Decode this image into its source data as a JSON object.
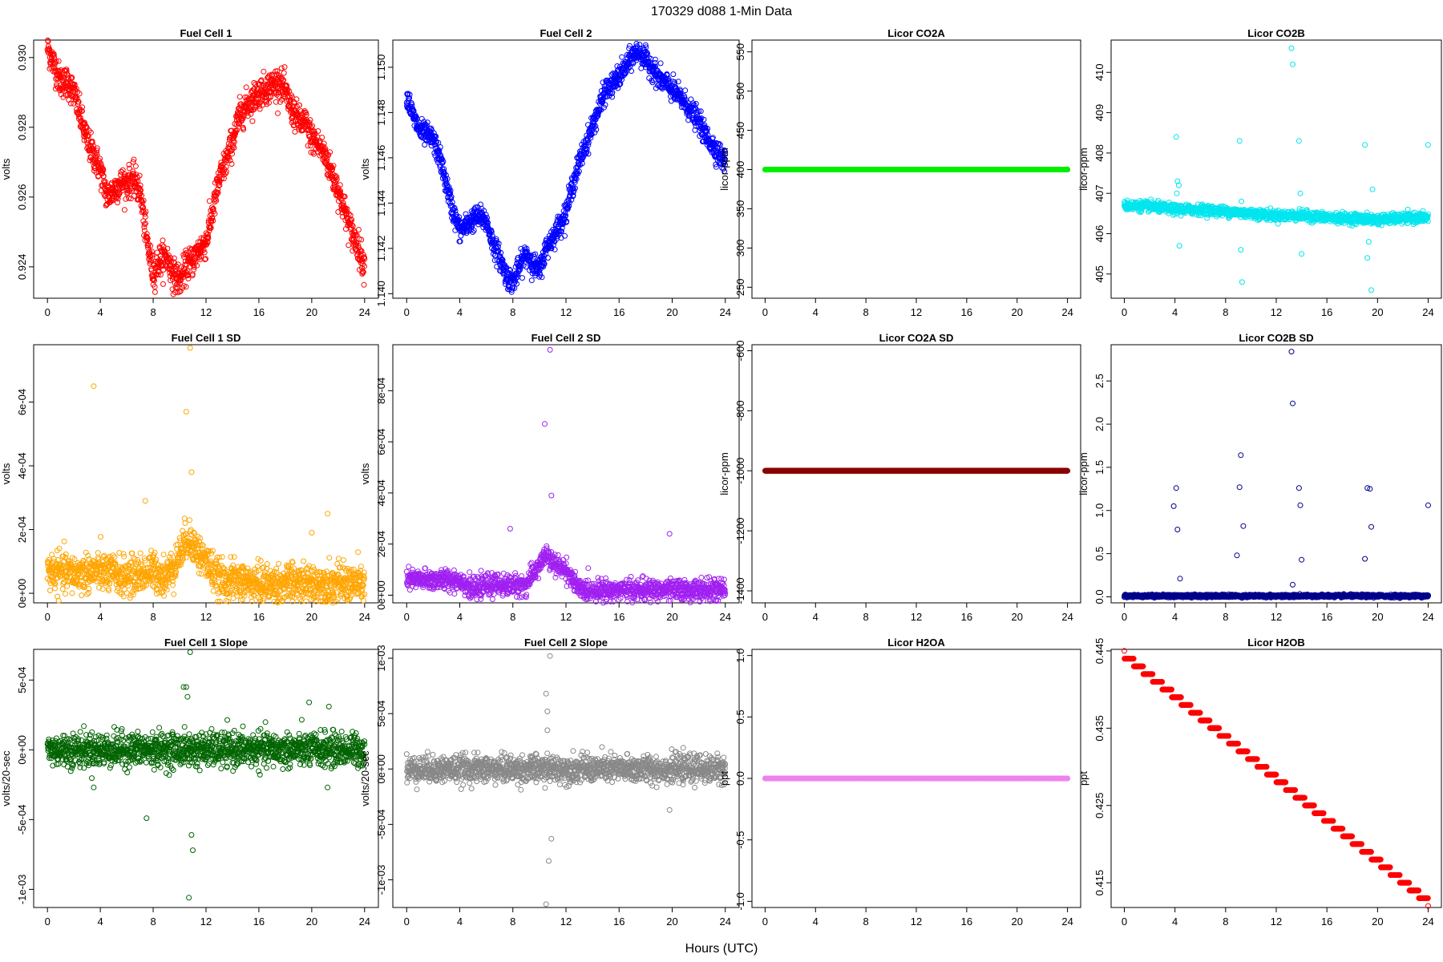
{
  "page_title": "170329    d088    1-Min Data",
  "xlabel_common": "Hours (UTC)",
  "chart_data": [
    {
      "type": "scatter",
      "title": "Fuel Cell 1",
      "ylabel": "volts",
      "color": "#ff0000",
      "xlim": [
        0,
        24
      ],
      "xticks": [
        0,
        4,
        8,
        12,
        16,
        20,
        24
      ],
      "ylim": [
        0.9231,
        0.9305
      ],
      "yticks": [
        0.924,
        0.926,
        0.928,
        0.93
      ],
      "ytick_labels": [
        "0.924",
        "0.926",
        "0.928",
        "0.930"
      ],
      "series": [
        {
          "x": [
            0,
            0.5,
            1,
            1.5,
            2,
            2.5,
            3,
            3.5,
            4,
            4.5,
            5,
            5.5,
            6,
            6.5,
            7,
            7.5,
            8,
            8.5,
            9,
            9.5,
            10,
            10.5,
            11,
            11.5,
            12,
            12.5,
            13,
            13.5,
            14,
            14.5,
            15,
            15.5,
            16,
            16.5,
            17,
            17.5,
            18,
            18.5,
            19,
            19.5,
            20,
            20.5,
            21,
            21.5,
            22,
            22.5,
            23,
            23.5,
            24
          ],
          "y": [
            0.9303,
            0.9298,
            0.9293,
            0.9293,
            0.929,
            0.9283,
            0.9276,
            0.9272,
            0.9268,
            0.926,
            0.9262,
            0.9264,
            0.9264,
            0.9265,
            0.9262,
            0.9248,
            0.9238,
            0.9242,
            0.9243,
            0.9238,
            0.9236,
            0.924,
            0.9242,
            0.9245,
            0.9247,
            0.9256,
            0.9265,
            0.927,
            0.9276,
            0.9283,
            0.9286,
            0.9288,
            0.929,
            0.9291,
            0.9292,
            0.9293,
            0.929,
            0.9285,
            0.9282,
            0.9281,
            0.9277,
            0.9275,
            0.9272,
            0.9267,
            0.9262,
            0.9256,
            0.925,
            0.9246,
            0.924
          ]
        }
      ],
      "noise": 0.00022
    },
    {
      "type": "scatter",
      "title": "Fuel Cell 2",
      "ylabel": "volts",
      "color": "#0000ff",
      "xlim": [
        0,
        24
      ],
      "xticks": [
        0,
        4,
        8,
        12,
        16,
        20,
        24
      ],
      "ylim": [
        1.1398,
        1.1512
      ],
      "yticks": [
        1.14,
        1.142,
        1.144,
        1.146,
        1.148,
        1.15
      ],
      "ytick_labels": [
        "1.140",
        "1.142",
        "1.144",
        "1.146",
        "1.148",
        "1.150"
      ],
      "series": [
        {
          "x": [
            0,
            0.5,
            1,
            1.5,
            2,
            2.5,
            3,
            3.5,
            4,
            4.5,
            5,
            5.5,
            6,
            6.5,
            7,
            7.5,
            8,
            8.5,
            9,
            9.5,
            10,
            10.5,
            11,
            11.5,
            12,
            12.5,
            13,
            13.5,
            14,
            14.5,
            15,
            15.5,
            16,
            16.5,
            17,
            17.5,
            18,
            18.5,
            19,
            19.5,
            20,
            20.5,
            21,
            21.5,
            22,
            22.5,
            23,
            23.5,
            24
          ],
          "y": [
            1.1488,
            1.1478,
            1.1472,
            1.147,
            1.1468,
            1.146,
            1.1448,
            1.1436,
            1.1428,
            1.143,
            1.1433,
            1.1434,
            1.1432,
            1.1422,
            1.1416,
            1.1408,
            1.1405,
            1.1412,
            1.1418,
            1.1413,
            1.141,
            1.142,
            1.1425,
            1.143,
            1.1436,
            1.1448,
            1.1458,
            1.1466,
            1.1474,
            1.1482,
            1.149,
            1.1492,
            1.1496,
            1.15,
            1.1505,
            1.1507,
            1.1503,
            1.15,
            1.1495,
            1.1493,
            1.149,
            1.1487,
            1.1484,
            1.148,
            1.1476,
            1.147,
            1.1466,
            1.1462,
            1.1458
          ]
        }
      ],
      "noise": 0.00025
    },
    {
      "type": "scatter",
      "title": "Licor CO2A",
      "ylabel": "licor-ppm",
      "color": "#00ee00",
      "xlim": [
        0,
        24
      ],
      "xticks": [
        0,
        4,
        8,
        12,
        16,
        20,
        24
      ],
      "ylim": [
        236,
        565
      ],
      "yticks": [
        250,
        300,
        350,
        400,
        450,
        500,
        550
      ],
      "ytick_labels": [
        "250",
        "300",
        "350",
        "400",
        "450",
        "500",
        "550"
      ],
      "series": [
        {
          "x": [
            0,
            24
          ],
          "y": [
            400,
            400
          ]
        }
      ],
      "noise": 0
    },
    {
      "type": "scatter",
      "title": "Licor CO2B",
      "ylabel": "licor-ppm",
      "color": "#00e5ee",
      "xlim": [
        0,
        24
      ],
      "xticks": [
        0,
        4,
        8,
        12,
        16,
        20,
        24
      ],
      "ylim": [
        404.4,
        410.8
      ],
      "yticks": [
        405,
        406,
        407,
        408,
        409,
        410
      ],
      "ytick_labels": [
        "405",
        "406",
        "407",
        "408",
        "409",
        "410"
      ],
      "series": [
        {
          "x": [
            0,
            2,
            4,
            6,
            8,
            10,
            12,
            14,
            16,
            18,
            20,
            22,
            24
          ],
          "y": [
            406.7,
            406.68,
            406.6,
            406.6,
            406.55,
            406.5,
            406.45,
            406.45,
            406.4,
            406.38,
            406.35,
            406.38,
            406.4
          ]
        }
      ],
      "noise": 0.06,
      "outliers": {
        "x": [
          4.1,
          4.2,
          4.3,
          4.35,
          4.15,
          9.1,
          9.2,
          9.3,
          9.25,
          13.2,
          13.3,
          13.8,
          13.9,
          14.0,
          19.0,
          19.2,
          19.3,
          19.5,
          19.6,
          24
        ],
        "y": [
          408.4,
          407.3,
          407.2,
          405.7,
          407.0,
          408.3,
          405.6,
          404.8,
          406.8,
          410.6,
          410.2,
          408.3,
          407.0,
          405.5,
          408.2,
          405.4,
          405.8,
          404.6,
          407.1,
          408.2
        ]
      }
    },
    {
      "type": "scatter",
      "title": "Fuel Cell 1 SD",
      "ylabel": "volts",
      "color": "#ffa500",
      "xlim": [
        0,
        24
      ],
      "xticks": [
        0,
        4,
        8,
        12,
        16,
        20,
        24
      ],
      "ylim": [
        -3e-05,
        0.00078
      ],
      "yticks": [
        0,
        0.0002,
        0.0004,
        0.0006
      ],
      "ytick_labels": [
        "0e+00",
        "2e-04",
        "4e-04",
        "6e-04"
      ],
      "series": [
        {
          "x": [
            0,
            2,
            4,
            6,
            8,
            9,
            10,
            10.5,
            11,
            11.5,
            12,
            12.5,
            13,
            14,
            16,
            18,
            20,
            22,
            24
          ],
          "y": [
            7e-05,
            6e-05,
            7e-05,
            5e-05,
            7e-05,
            5e-05,
            0.00012,
            0.00017,
            0.00016,
            0.00012,
            0.0001,
            7e-05,
            4e-05,
            4e-05,
            3e-05,
            3e-05,
            3e-05,
            3e-05,
            3e-05
          ]
        }
      ],
      "noise": 3e-05,
      "outliers": {
        "x": [
          3.5,
          10.5,
          10.8,
          10.9,
          7.4,
          21.2,
          20
        ],
        "y": [
          0.00065,
          0.00057,
          0.00077,
          0.00038,
          0.00029,
          0.00025,
          0.00019
        ]
      }
    },
    {
      "type": "scatter",
      "title": "Fuel Cell 2 SD",
      "ylabel": "volts",
      "color": "#a020f0",
      "xlim": [
        0,
        24
      ],
      "xticks": [
        0,
        4,
        8,
        12,
        16,
        20,
        24
      ],
      "ylim": [
        -3e-05,
        0.00098
      ],
      "yticks": [
        0,
        0.0002,
        0.0004,
        0.0006,
        0.0008
      ],
      "ytick_labels": [
        "0e+00",
        "2e-04",
        "4e-04",
        "6e-04",
        "8e-04"
      ],
      "series": [
        {
          "x": [
            0,
            2,
            4,
            5,
            6,
            8,
            9,
            10,
            10.5,
            11,
            12,
            12.5,
            13,
            14,
            16,
            18,
            20,
            22,
            24
          ],
          "y": [
            6e-05,
            6e-05,
            6e-05,
            2e-05,
            4e-05,
            4e-05,
            4e-05,
            0.00012,
            0.00016,
            0.00012,
            0.0001,
            6e-05,
            2e-05,
            2e-05,
            2e-05,
            2e-05,
            2e-05,
            2e-05,
            2e-05
          ]
        }
      ],
      "noise": 2e-05,
      "outliers": {
        "x": [
          10.8,
          10.4,
          10.9,
          7.8,
          19.8
        ],
        "y": [
          0.00096,
          0.00067,
          0.00039,
          0.00026,
          0.00024
        ]
      }
    },
    {
      "type": "scatter",
      "title": "Licor CO2A SD",
      "ylabel": "licor-ppm",
      "color": "#8b0000",
      "xlim": [
        0,
        24
      ],
      "xticks": [
        0,
        4,
        8,
        12,
        16,
        20,
        24
      ],
      "ylim": [
        -1440,
        -580
      ],
      "yticks": [
        -1400,
        -1200,
        -1000,
        -800,
        -600
      ],
      "ytick_labels": [
        "-1400",
        "-1200",
        "-1000",
        "-800",
        "-600"
      ],
      "series": [
        {
          "x": [
            0,
            24
          ],
          "y": [
            -1000,
            -1000
          ]
        }
      ],
      "noise": 0
    },
    {
      "type": "scatter",
      "title": "Licor CO2B SD",
      "ylabel": "licor-ppm",
      "color": "#00008b",
      "xlim": [
        0,
        24
      ],
      "xticks": [
        0,
        4,
        8,
        12,
        16,
        20,
        24
      ],
      "ylim": [
        -0.07,
        2.92
      ],
      "yticks": [
        0,
        0.5,
        1,
        1.5,
        2,
        2.5
      ],
      "ytick_labels": [
        "0.0",
        "0.5",
        "1.0",
        "1.5",
        "2.0",
        "2.5"
      ],
      "series": [
        {
          "x": [
            0,
            24
          ],
          "y": [
            0.01,
            0.01
          ]
        }
      ],
      "noise": 0.008,
      "outliers": {
        "x": [
          13.2,
          13.3,
          9.2,
          4.1,
          9.1,
          13.8,
          19.2,
          19.4,
          24,
          3.9,
          13.9,
          4.2,
          9.4,
          19.5,
          8.9,
          19.0,
          14.0,
          4.4,
          13.3
        ],
        "y": [
          2.84,
          2.24,
          1.64,
          1.26,
          1.27,
          1.26,
          1.26,
          1.25,
          1.06,
          1.05,
          1.06,
          0.78,
          0.82,
          0.81,
          0.48,
          0.44,
          0.43,
          0.21,
          0.14
        ]
      }
    },
    {
      "type": "scatter",
      "title": "Fuel Cell 1 Slope",
      "ylabel": "volts/20-sec",
      "color": "#006400",
      "xlim": [
        0,
        24
      ],
      "xticks": [
        0,
        4,
        8,
        12,
        16,
        20,
        24
      ],
      "ylim": [
        -0.00113,
        0.00072
      ],
      "yticks": [
        -0.001,
        -0.0005,
        0,
        0.0005
      ],
      "ytick_labels": [
        "-1e-03",
        "-5e-04",
        "0e+00",
        "5e-04"
      ],
      "series": [
        {
          "x": [
            0,
            24
          ],
          "y": [
            0,
            0
          ]
        }
      ],
      "noise": 6e-05,
      "outliers": {
        "x": [
          10.8,
          10.5,
          10.3,
          10.9,
          11.0,
          10.7,
          10.6,
          7.5,
          19.8,
          21.3,
          3.5,
          21.2
        ],
        "y": [
          0.0007,
          0.00045,
          0.00045,
          -0.00061,
          -0.00072,
          -0.00106,
          0.00038,
          -0.00049,
          0.00034,
          0.00031,
          -0.00027,
          -0.00027
        ]
      }
    },
    {
      "type": "scatter",
      "title": "Fuel Cell 2 Slope",
      "ylabel": "volts/20-sec",
      "color": "#888888",
      "xlim": [
        0,
        24
      ],
      "xticks": [
        0,
        4,
        8,
        12,
        16,
        20,
        24
      ],
      "ylim": [
        -0.00125,
        0.00108
      ],
      "yticks": [
        -0.001,
        -0.0005,
        0,
        0.0005,
        0.001
      ],
      "ytick_labels": [
        "-1e-03",
        "-5e-04",
        "0e+00",
        "5e-04",
        "1e-03"
      ],
      "series": [
        {
          "x": [
            0,
            24
          ],
          "y": [
            0,
            0
          ]
        }
      ],
      "noise": 6e-05,
      "outliers": {
        "x": [
          10.8,
          10.5,
          10.6,
          10.7,
          10.5,
          10.9,
          10.6,
          19.8
        ],
        "y": [
          0.00102,
          0.00068,
          0.00052,
          -0.00083,
          -0.00122,
          -0.00063,
          0.00035,
          -0.00037
        ]
      }
    },
    {
      "type": "scatter",
      "title": "Licor H2OA",
      "ylabel": "ppt",
      "color": "#ee82ee",
      "xlim": [
        0,
        24
      ],
      "xticks": [
        0,
        4,
        8,
        12,
        16,
        20,
        24
      ],
      "ylim": [
        -1.05,
        1.05
      ],
      "yticks": [
        -1,
        -0.5,
        0,
        0.5,
        1
      ],
      "ytick_labels": [
        "-1.0",
        "-0.5",
        "0.0",
        "0.5",
        "1.0"
      ],
      "series": [
        {
          "x": [
            0,
            24
          ],
          "y": [
            0,
            0
          ]
        }
      ],
      "noise": 0
    },
    {
      "type": "scatter",
      "title": "Licor H2OB",
      "ylabel": "ppt",
      "color": "#ff0000",
      "xlim": [
        0,
        24
      ],
      "xticks": [
        0,
        4,
        8,
        12,
        16,
        20,
        24
      ],
      "ylim": [
        0.4118,
        0.4452
      ],
      "yticks": [
        0.415,
        0.425,
        0.435,
        0.445
      ],
      "ytick_labels": [
        "0.415",
        "0.425",
        "0.435",
        "0.445"
      ],
      "series": [
        {
          "x": [
            0,
            24
          ],
          "y": [
            0.4445,
            0.4125
          ]
        }
      ],
      "noise": 0,
      "step": 0.001
    }
  ]
}
